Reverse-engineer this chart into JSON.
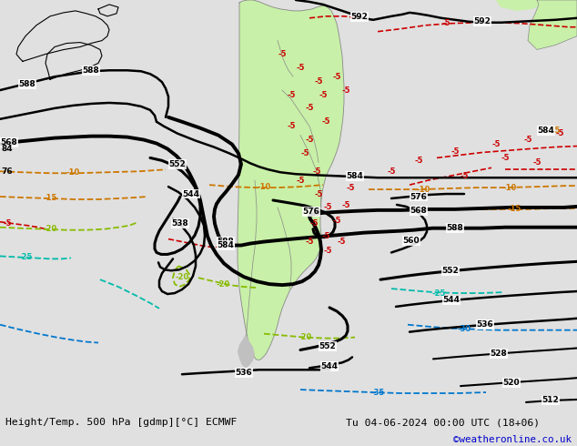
{
  "title_left": "Height/Temp. 500 hPa [gdmp][°C] ECMWF",
  "title_right": "Tu 04-06-2024 00:00 UTC (18+06)",
  "copyright": "©weatheronline.co.uk",
  "bg_color": "#e0e0e0",
  "land_color": "#c8f0a8",
  "ocean_color": "#e0e0e0",
  "fig_width": 6.34,
  "fig_height": 4.9,
  "dpi": 100,
  "copyright_color": "#0000cc",
  "title_color": "#000000",
  "temp_neg5_color": "#cc0000",
  "temp_neg10_color": "#cc7700",
  "temp_neg15_color": "#cc7700",
  "temp_neg20_color": "#88bb00",
  "temp_neg25_color": "#00bbaa",
  "temp_neg30_color": "#0077cc",
  "temp_neg35_color": "#0077cc",
  "white": "#ffffff"
}
